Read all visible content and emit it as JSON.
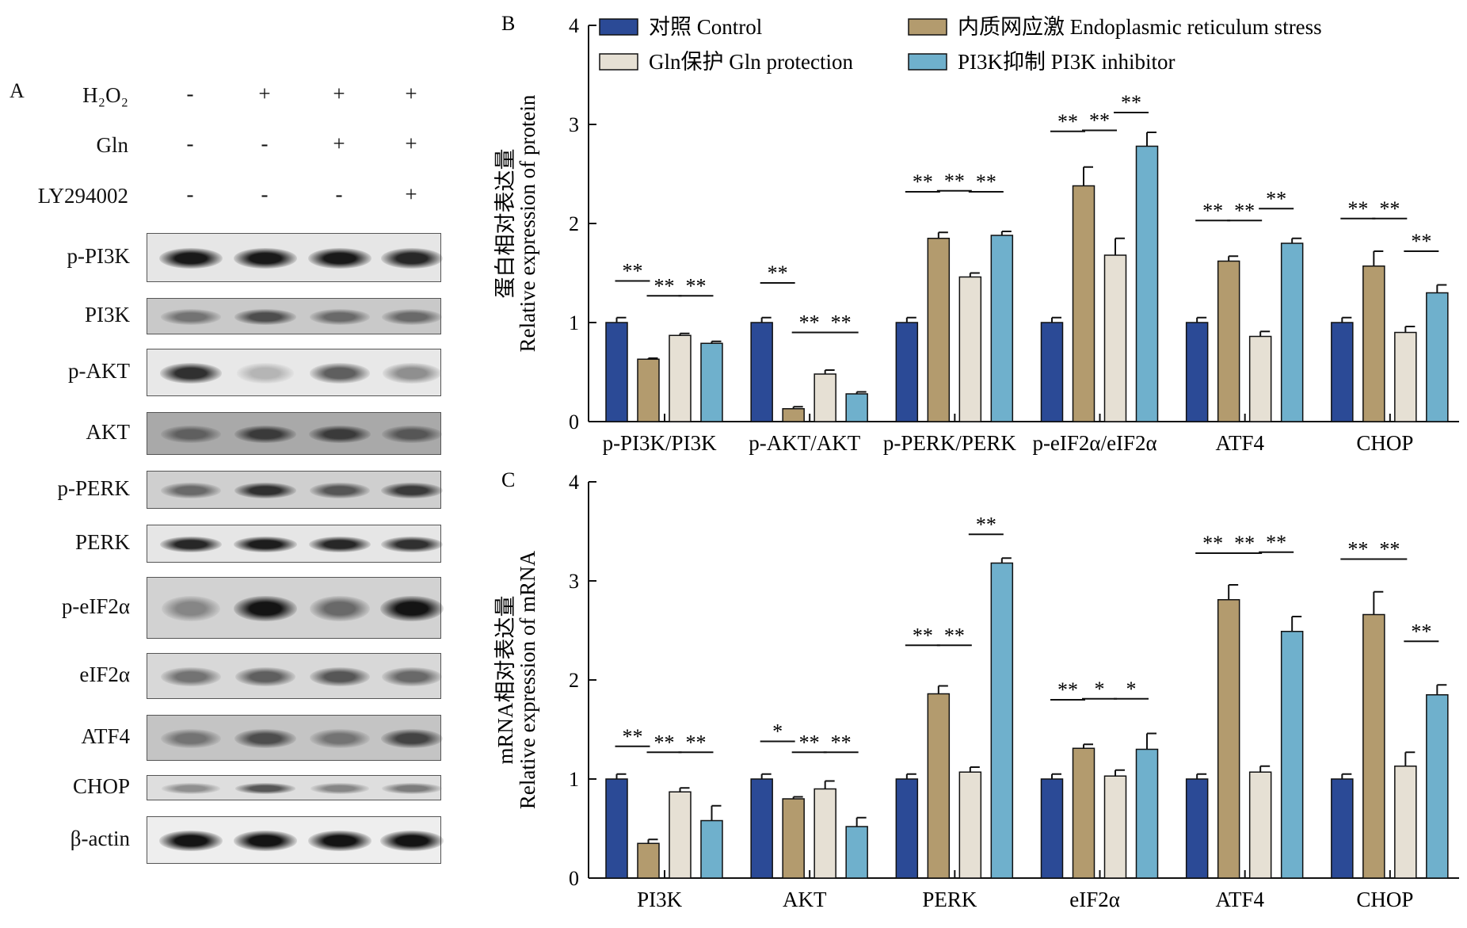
{
  "panel_A": {
    "letter": "A",
    "conditions": [
      {
        "name": "H₂O₂",
        "signs": [
          "-",
          "+",
          "+",
          "+"
        ]
      },
      {
        "name": "Gln",
        "signs": [
          "-",
          "-",
          "+",
          "+"
        ]
      },
      {
        "name": "LY294002",
        "signs": [
          "-",
          "-",
          "-",
          "+"
        ]
      }
    ],
    "blots": [
      {
        "label": "p-PI3K",
        "band_intensity": [
          0.92,
          0.92,
          0.92,
          0.85
        ],
        "bg": "#e6e6e6"
      },
      {
        "label": "PI3K",
        "band_intensity": [
          0.45,
          0.65,
          0.5,
          0.5
        ],
        "bg": "#c9c9c9"
      },
      {
        "label": "p-AKT",
        "band_intensity": [
          0.8,
          0.1,
          0.55,
          0.3
        ],
        "bg": "#e8e8e8"
      },
      {
        "label": "AKT",
        "band_intensity": [
          0.55,
          0.75,
          0.75,
          0.6
        ],
        "bg": "#a9a9a9"
      },
      {
        "label": "p-PERK",
        "band_intensity": [
          0.5,
          0.8,
          0.6,
          0.75
        ],
        "bg": "#cfcfcf"
      },
      {
        "label": "PERK",
        "band_intensity": [
          0.85,
          0.9,
          0.85,
          0.8
        ],
        "bg": "#e6e6e6"
      },
      {
        "label": "p-eIF2α",
        "band_intensity": [
          0.35,
          0.95,
          0.5,
          0.95
        ],
        "bg": "#d2d2d2"
      },
      {
        "label": "eIF2α",
        "band_intensity": [
          0.45,
          0.55,
          0.6,
          0.5
        ],
        "bg": "#d8d8d8"
      },
      {
        "label": "ATF4",
        "band_intensity": [
          0.45,
          0.65,
          0.45,
          0.7
        ],
        "bg": "#c4c4c4"
      },
      {
        "label": "CHOP",
        "band_intensity": [
          0.3,
          0.6,
          0.35,
          0.4
        ],
        "bg": "#dedede"
      },
      {
        "label": "β-actin",
        "band_intensity": [
          0.95,
          0.95,
          0.95,
          0.95
        ],
        "bg": "#eeeeee"
      }
    ]
  },
  "colors": {
    "control": "#2b4a96",
    "er_stress": "#b39b6e",
    "gln": "#e6e0d4",
    "pi3k_inhibitor": "#6fb0cc"
  },
  "chart_data": [
    {
      "type": "bar",
      "panel": "B",
      "ylabel": "Relative expression of protein",
      "ylabel_cn": "蛋白相对表达量",
      "ylim": [
        0,
        4
      ],
      "yticks": [
        "0",
        "1",
        "2",
        "3",
        "4"
      ],
      "legend_placement": "top",
      "categories": [
        "p-PI3K/PI3K",
        "p-AKT/AKT",
        "p-PERK/PERK",
        "p-eIF2α/eIF2α",
        "ATF4",
        "CHOP"
      ],
      "series": [
        {
          "name": "对照 Control",
          "values": [
            1.0,
            1.0,
            1.0,
            1.0,
            1.0,
            1.0
          ],
          "errors": [
            0.05,
            0.05,
            0.05,
            0.05,
            0.05,
            0.05
          ]
        },
        {
          "name": "内质网应激 Endoplasmic reticulum stress",
          "values": [
            0.63,
            0.13,
            1.85,
            2.38,
            1.62,
            1.57
          ],
          "errors": [
            0.01,
            0.02,
            0.06,
            0.19,
            0.05,
            0.15
          ]
        },
        {
          "name": "Gln保护 Gln protection",
          "values": [
            0.87,
            0.48,
            1.46,
            1.68,
            0.86,
            0.9
          ],
          "errors": [
            0.02,
            0.04,
            0.04,
            0.17,
            0.05,
            0.06
          ]
        },
        {
          "name": "PI3K抑制 PI3K inhibitor",
          "values": [
            0.79,
            0.28,
            1.88,
            2.78,
            1.8,
            1.3
          ],
          "errors": [
            0.02,
            0.02,
            0.04,
            0.14,
            0.05,
            0.08
          ]
        }
      ],
      "significance": [
        [
          {
            "from": 0,
            "to": 1,
            "label": "**",
            "y": 1.42
          },
          {
            "from": 1,
            "to": 2,
            "label": "**",
            "y": 1.27
          },
          {
            "from": 2,
            "to": 3,
            "label": "**",
            "y": 1.27
          }
        ],
        [
          {
            "from": 0,
            "to": 1,
            "label": "**",
            "y": 1.4
          },
          {
            "from": 1,
            "to": 2,
            "label": "**",
            "y": 0.9
          },
          {
            "from": 2,
            "to": 3,
            "label": "**",
            "y": 0.9
          }
        ],
        [
          {
            "from": 0,
            "to": 1,
            "label": "**",
            "y": 2.32
          },
          {
            "from": 1,
            "to": 2,
            "label": "**",
            "y": 2.33
          },
          {
            "from": 2,
            "to": 3,
            "label": "**",
            "y": 2.32
          }
        ],
        [
          {
            "from": 0,
            "to": 1,
            "label": "**",
            "y": 2.93
          },
          {
            "from": 1,
            "to": 2,
            "label": "**",
            "y": 2.94
          },
          {
            "from": 2,
            "to": 3,
            "label": "**",
            "y": 3.12
          }
        ],
        [
          {
            "from": 0,
            "to": 1,
            "label": "**",
            "y": 2.03
          },
          {
            "from": 1,
            "to": 2,
            "label": "**",
            "y": 2.03
          },
          {
            "from": 2,
            "to": 3,
            "label": "**",
            "y": 2.15
          }
        ],
        [
          {
            "from": 0,
            "to": 1,
            "label": "**",
            "y": 2.05
          },
          {
            "from": 1,
            "to": 2,
            "label": "**",
            "y": 2.05
          },
          {
            "from": 2,
            "to": 3,
            "label": "**",
            "y": 1.72
          }
        ]
      ]
    },
    {
      "type": "bar",
      "panel": "C",
      "ylabel": "Relative expression of mRNA",
      "ylabel_cn": "mRNA相对表达量",
      "ylim": [
        0,
        4
      ],
      "yticks": [
        "0",
        "1",
        "2",
        "3",
        "4"
      ],
      "categories": [
        "PI3K",
        "AKT",
        "PERK",
        "eIF2α",
        "ATF4",
        "CHOP"
      ],
      "series": [
        {
          "name": "对照 Control",
          "values": [
            1.0,
            1.0,
            1.0,
            1.0,
            1.0,
            1.0
          ],
          "errors": [
            0.05,
            0.05,
            0.05,
            0.05,
            0.05,
            0.05
          ]
        },
        {
          "name": "内质网应激 Endoplasmic reticulum stress",
          "values": [
            0.35,
            0.8,
            1.86,
            1.31,
            2.81,
            2.66
          ],
          "errors": [
            0.04,
            0.02,
            0.08,
            0.04,
            0.15,
            0.23
          ]
        },
        {
          "name": "Gln保护 Gln protection",
          "values": [
            0.87,
            0.9,
            1.07,
            1.03,
            1.07,
            1.13
          ],
          "errors": [
            0.04,
            0.08,
            0.05,
            0.06,
            0.06,
            0.14
          ]
        },
        {
          "name": "PI3K抑制 PI3K inhibitor",
          "values": [
            0.58,
            0.52,
            3.18,
            1.3,
            2.49,
            1.85
          ],
          "errors": [
            0.15,
            0.09,
            0.05,
            0.16,
            0.15,
            0.1
          ]
        }
      ],
      "significance": [
        [
          {
            "from": 0,
            "to": 1,
            "label": "**",
            "y": 1.33
          },
          {
            "from": 1,
            "to": 2,
            "label": "**",
            "y": 1.27
          },
          {
            "from": 2,
            "to": 3,
            "label": "**",
            "y": 1.27
          }
        ],
        [
          {
            "from": 0,
            "to": 1,
            "label": "*",
            "y": 1.38
          },
          {
            "from": 1,
            "to": 2,
            "label": "**",
            "y": 1.27
          },
          {
            "from": 2,
            "to": 3,
            "label": "**",
            "y": 1.27
          }
        ],
        [
          {
            "from": 0,
            "to": 1,
            "label": "**",
            "y": 2.35
          },
          {
            "from": 1,
            "to": 2,
            "label": "**",
            "y": 2.35
          },
          {
            "from": 2,
            "to": 3,
            "label": "**",
            "y": 3.47
          }
        ],
        [
          {
            "from": 0,
            "to": 1,
            "label": "**",
            "y": 1.8
          },
          {
            "from": 1,
            "to": 2,
            "label": "*",
            "y": 1.81
          },
          {
            "from": 2,
            "to": 3,
            "label": "*",
            "y": 1.81
          }
        ],
        [
          {
            "from": 0,
            "to": 1,
            "label": "**",
            "y": 3.28
          },
          {
            "from": 1,
            "to": 2,
            "label": "**",
            "y": 3.28
          },
          {
            "from": 2,
            "to": 3,
            "label": "**",
            "y": 3.29
          }
        ],
        [
          {
            "from": 0,
            "to": 1,
            "label": "**",
            "y": 3.22
          },
          {
            "from": 1,
            "to": 2,
            "label": "**",
            "y": 3.22
          },
          {
            "from": 2,
            "to": 3,
            "label": "**",
            "y": 2.39
          }
        ]
      ]
    }
  ]
}
